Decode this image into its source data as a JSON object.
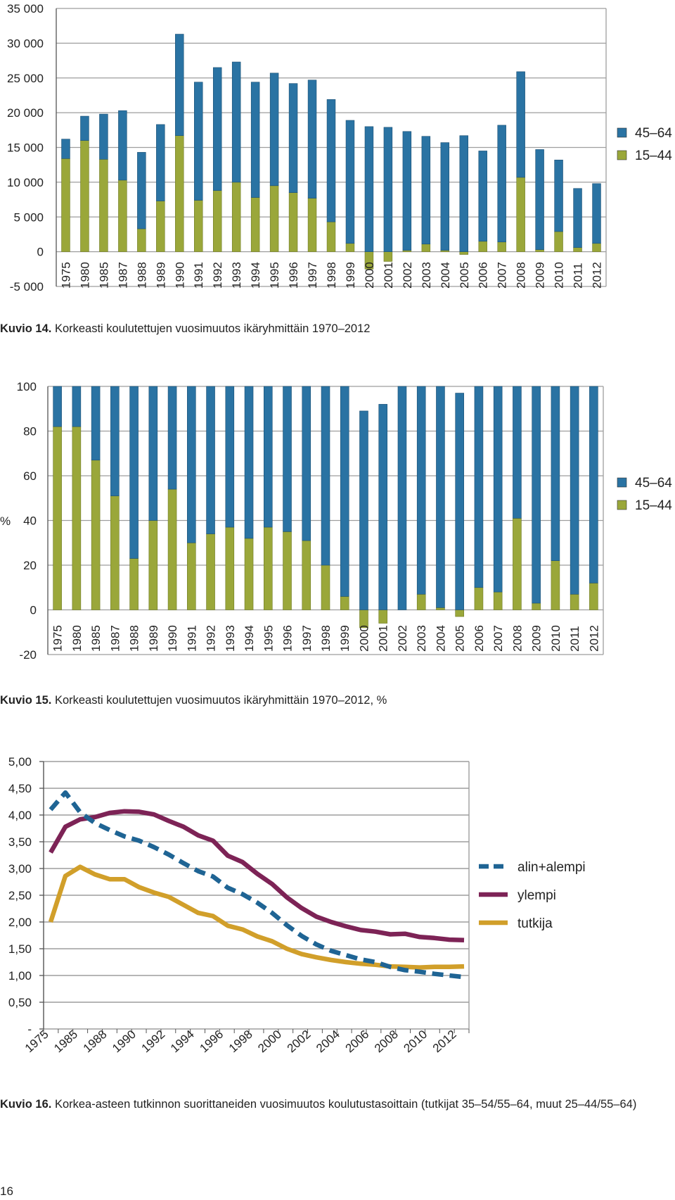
{
  "colors": {
    "older": "#2a73a3",
    "younger": "#9aa73a",
    "grid": "#9e9e9e",
    "axis": "#555555",
    "alin": "#1f6494",
    "ylempi": "#7d2356",
    "tutkija": "#d19f2a"
  },
  "chart_data": [
    {
      "type": "bar",
      "stacked": true,
      "categories": [
        "1975",
        "1980",
        "1985",
        "1987",
        "1988",
        "1989",
        "1990",
        "1991",
        "1992",
        "1993",
        "1994",
        "1995",
        "1996",
        "1997",
        "1998",
        "1999",
        "2000",
        "2001",
        "2002",
        "2003",
        "2004",
        "2005",
        "2006",
        "2007",
        "2008",
        "2009",
        "2010",
        "2011",
        "2012"
      ],
      "series": [
        {
          "name": "45–64",
          "values": [
            2800,
            3500,
            6500,
            10000,
            11000,
            11000,
            14600,
            17000,
            17700,
            17300,
            16600,
            16200,
            15700,
            17000,
            17600,
            17700,
            18000,
            17900,
            17100,
            15500,
            15500,
            16700,
            13000,
            16800,
            15200,
            14400,
            10300,
            8500,
            8600
          ]
        },
        {
          "name": "15–44",
          "values": [
            13400,
            16000,
            13300,
            10300,
            3300,
            7300,
            16700,
            7400,
            8800,
            10000,
            7800,
            9500,
            8500,
            7700,
            4300,
            1200,
            -2500,
            -1400,
            200,
            1100,
            200,
            -400,
            1500,
            1400,
            10700,
            300,
            2900,
            600,
            1200
          ]
        }
      ],
      "ylim": [
        -5000,
        35000
      ],
      "yticks": [
        "-5 000",
        "0",
        "5 000",
        "10 000",
        "15 000",
        "20 000",
        "25 000",
        "30 000",
        "35 000"
      ],
      "ytick_values": [
        -5000,
        0,
        5000,
        10000,
        15000,
        20000,
        25000,
        30000,
        35000
      ],
      "legend": [
        "45–64",
        "15–44"
      ],
      "ylabel": ""
    },
    {
      "type": "bar",
      "stacked": true,
      "categories": [
        "1975",
        "1980",
        "1985",
        "1987",
        "1988",
        "1989",
        "1990",
        "1991",
        "1992",
        "1993",
        "1994",
        "1995",
        "1996",
        "1997",
        "1998",
        "1999",
        "2000",
        "2001",
        "2002",
        "2003",
        "2004",
        "2005",
        "2006",
        "2007",
        "2008",
        "2009",
        "2010",
        "2011",
        "2012"
      ],
      "series": [
        {
          "name": "45–64",
          "values": [
            18,
            18,
            33,
            49,
            77,
            60,
            46,
            70,
            66,
            63,
            68,
            63,
            65,
            69,
            80,
            94,
            89,
            92,
            100,
            93,
            99,
            97,
            90,
            92,
            59,
            97,
            78,
            93,
            88
          ]
        },
        {
          "name": "15–44",
          "values": [
            82,
            82,
            67,
            51,
            23,
            40,
            54,
            30,
            34,
            37,
            32,
            37,
            35,
            31,
            20,
            6,
            -8,
            -6,
            0,
            7,
            1,
            -3,
            10,
            8,
            41,
            3,
            22,
            7,
            12
          ]
        }
      ],
      "ylim": [
        -20,
        100
      ],
      "yticks": [
        "-20",
        "0",
        "20",
        "40",
        "60",
        "80",
        "100"
      ],
      "ytick_values": [
        -20,
        0,
        20,
        40,
        60,
        80,
        100
      ],
      "ylabel": "%",
      "legend": [
        "45–64",
        "15–44"
      ]
    },
    {
      "type": "line",
      "x": [
        "1975",
        "1980",
        "1985",
        "1987",
        "1988",
        "1989",
        "1990",
        "1991",
        "1992",
        "1993",
        "1994",
        "1995",
        "1996",
        "1997",
        "1998",
        "1999",
        "2000",
        "2001",
        "2002",
        "2003",
        "2004",
        "2005",
        "2006",
        "2007",
        "2008",
        "2009",
        "2010",
        "2011",
        "2012"
      ],
      "xticks": [
        "1975",
        "1985",
        "1988",
        "1990",
        "1992",
        "1994",
        "1996",
        "1998",
        "2000",
        "2002",
        "2004",
        "2006",
        "2008",
        "2010",
        "2012"
      ],
      "series": [
        {
          "name": "alin+alempi",
          "style": "dashed",
          "values": [
            4.1,
            4.42,
            4.05,
            3.85,
            3.72,
            3.6,
            3.52,
            3.4,
            3.26,
            3.1,
            2.95,
            2.85,
            2.64,
            2.52,
            2.36,
            2.17,
            1.94,
            1.74,
            1.58,
            1.46,
            1.38,
            1.3,
            1.25,
            1.16,
            1.1,
            1.07,
            1.03,
            1.0,
            0.97
          ]
        },
        {
          "name": "ylempi",
          "style": "solid",
          "values": [
            3.3,
            3.78,
            3.92,
            3.96,
            4.04,
            4.07,
            4.06,
            4.01,
            3.89,
            3.78,
            3.62,
            3.52,
            3.24,
            3.12,
            2.9,
            2.71,
            2.46,
            2.26,
            2.1,
            2.0,
            1.92,
            1.85,
            1.82,
            1.77,
            1.78,
            1.72,
            1.7,
            1.67,
            1.66
          ]
        },
        {
          "name": "tutkija",
          "style": "solid",
          "values": [
            2.0,
            2.86,
            3.03,
            2.89,
            2.8,
            2.8,
            2.65,
            2.55,
            2.47,
            2.32,
            2.17,
            2.11,
            1.93,
            1.86,
            1.73,
            1.64,
            1.5,
            1.4,
            1.34,
            1.29,
            1.25,
            1.22,
            1.2,
            1.17,
            1.16,
            1.15,
            1.16,
            1.16,
            1.17
          ]
        }
      ],
      "ylim": [
        0,
        5
      ],
      "yticks": [
        "-",
        "0,50",
        "1,00",
        "1,50",
        "2,00",
        "2,50",
        "3,00",
        "3,50",
        "4,00",
        "4,50",
        "5,00"
      ],
      "ytick_values": [
        0,
        0.5,
        1,
        1.5,
        2,
        2.5,
        3,
        3.5,
        4,
        4.5,
        5
      ],
      "legend": [
        "alin+alempi",
        "ylempi",
        "tutkija"
      ]
    }
  ],
  "captions": {
    "c14_label": "Kuvio 14.",
    "c14_text": " Korkeasti koulutettujen vuosimuutos ikäryhmittäin 1970–2012",
    "c15_label": "Kuvio 15.",
    "c15_text": " Korkeasti koulutettujen vuosimuutos ikäryhmittäin 1970–2012, %",
    "c16_label": "Kuvio 16.",
    "c16_text": " Korkea-asteen tutkinnon suorittaneiden vuosimuutos koulutustasoittain (tutkijat 35–54/55–64, muut 25–44/55–64)"
  },
  "page_number": "16"
}
